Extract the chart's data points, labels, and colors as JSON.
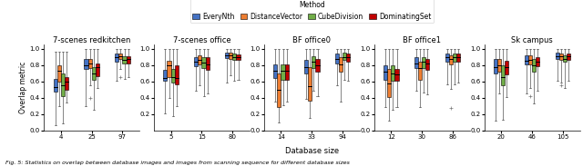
{
  "title": "Method",
  "methods": [
    "EveryNth",
    "DistanceVector",
    "CubeDivision",
    "DominatingSet"
  ],
  "method_colors": [
    "#4472C4",
    "#ED7D31",
    "#70AD47",
    "#C00000"
  ],
  "subplot_titles": [
    "7-scenes redkitchen",
    "7-scenes office",
    "BF office0",
    "BF office1",
    "Sk campus"
  ],
  "xlabel": "Database size",
  "ylabel": "Overlap metric",
  "caption": "Fig. 5: Statistics on overlap between database images and images from scanning sequence for different database sizes",
  "subplots": [
    {
      "xtick_labels": [
        "4",
        "25",
        "97"
      ],
      "ylim": [
        0.0,
        1.05
      ],
      "yticks": [
        0.0,
        0.2,
        0.4,
        0.6,
        0.8,
        1.0
      ],
      "show_yticks": true,
      "groups": [
        {
          "label": "4",
          "boxes": [
            {
              "q1": 0.48,
              "median": 0.535,
              "q3": 0.63,
              "whisker_low": 0.06,
              "whisker_high": 0.97,
              "fliers_low": [],
              "fliers_high": []
            },
            {
              "q1": 0.6,
              "median": 0.735,
              "q3": 0.8,
              "whisker_low": 0.3,
              "whisker_high": 0.965,
              "fliers_low": [],
              "fliers_high": []
            },
            {
              "q1": 0.42,
              "median": 0.555,
              "q3": 0.695,
              "whisker_low": 0.09,
              "whisker_high": 0.97,
              "fliers_low": [],
              "fliers_high": []
            },
            {
              "q1": 0.5,
              "median": 0.6,
              "q3": 0.65,
              "whisker_low": 0.34,
              "whisker_high": 0.97,
              "fliers_low": [],
              "fliers_high": []
            }
          ]
        },
        {
          "label": "25",
          "boxes": [
            {
              "q1": 0.75,
              "median": 0.8,
              "q3": 0.875,
              "whisker_low": 0.3,
              "whisker_high": 1.0,
              "fliers_low": [],
              "fliers_high": []
            },
            {
              "q1": 0.76,
              "median": 0.825,
              "q3": 0.88,
              "whisker_low": 0.555,
              "whisker_high": 1.0,
              "fliers_low": [
                0.4
              ],
              "fliers_high": []
            },
            {
              "q1": 0.615,
              "median": 0.695,
              "q3": 0.78,
              "whisker_low": 0.25,
              "whisker_high": 1.0,
              "fliers_low": [],
              "fliers_high": []
            },
            {
              "q1": 0.67,
              "median": 0.775,
              "q3": 0.825,
              "whisker_low": 0.52,
              "whisker_high": 1.0,
              "fliers_low": [],
              "fliers_high": []
            }
          ]
        },
        {
          "label": "97",
          "boxes": [
            {
              "q1": 0.845,
              "median": 0.895,
              "q3": 0.94,
              "whisker_low": 0.61,
              "whisker_high": 1.0,
              "fliers_low": [],
              "fliers_high": []
            },
            {
              "q1": 0.875,
              "median": 0.905,
              "q3": 0.945,
              "whisker_low": 0.75,
              "whisker_high": 1.0,
              "fliers_low": [
                0.65
              ],
              "fliers_high": []
            },
            {
              "q1": 0.825,
              "median": 0.865,
              "q3": 0.915,
              "whisker_low": 0.63,
              "whisker_high": 1.0,
              "fliers_low": [],
              "fliers_high": []
            },
            {
              "q1": 0.825,
              "median": 0.875,
              "q3": 0.915,
              "whisker_low": 0.65,
              "whisker_high": 1.0,
              "fliers_low": [],
              "fliers_high": []
            }
          ]
        }
      ]
    },
    {
      "xtick_labels": [
        "5",
        "15",
        "80"
      ],
      "ylim": [
        0.0,
        1.05
      ],
      "yticks": [
        0.2,
        0.4,
        0.6,
        0.8,
        1.0
      ],
      "show_yticks": true,
      "groups": [
        {
          "label": "5",
          "boxes": [
            {
              "q1": 0.605,
              "median": 0.645,
              "q3": 0.74,
              "whisker_low": 0.21,
              "whisker_high": 1.0,
              "fliers_low": [],
              "fliers_high": []
            },
            {
              "q1": 0.655,
              "median": 0.795,
              "q3": 0.855,
              "whisker_low": 0.4,
              "whisker_high": 1.0,
              "fliers_low": [],
              "fliers_high": []
            },
            {
              "q1": 0.59,
              "median": 0.655,
              "q3": 0.75,
              "whisker_low": 0.175,
              "whisker_high": 1.0,
              "fliers_low": [],
              "fliers_high": []
            },
            {
              "q1": 0.565,
              "median": 0.64,
              "q3": 0.795,
              "whisker_low": 0.295,
              "whisker_high": 1.0,
              "fliers_low": [],
              "fliers_high": []
            }
          ]
        },
        {
          "label": "15",
          "boxes": [
            {
              "q1": 0.785,
              "median": 0.845,
              "q3": 0.9,
              "whisker_low": 0.485,
              "whisker_high": 1.0,
              "fliers_low": [],
              "fliers_high": []
            },
            {
              "q1": 0.805,
              "median": 0.87,
              "q3": 0.92,
              "whisker_low": 0.555,
              "whisker_high": 1.0,
              "fliers_low": [],
              "fliers_high": []
            },
            {
              "q1": 0.765,
              "median": 0.83,
              "q3": 0.895,
              "whisker_low": 0.425,
              "whisker_high": 1.0,
              "fliers_low": [],
              "fliers_high": []
            },
            {
              "q1": 0.745,
              "median": 0.805,
              "q3": 0.895,
              "whisker_low": 0.455,
              "whisker_high": 1.0,
              "fliers_low": [],
              "fliers_high": []
            }
          ]
        },
        {
          "label": "80",
          "boxes": [
            {
              "q1": 0.885,
              "median": 0.92,
              "q3": 0.955,
              "whisker_low": 0.585,
              "whisker_high": 1.0,
              "fliers_low": [],
              "fliers_high": []
            },
            {
              "q1": 0.88,
              "median": 0.92,
              "q3": 0.955,
              "whisker_low": 0.68,
              "whisker_high": 1.0,
              "fliers_low": [],
              "fliers_high": []
            },
            {
              "q1": 0.865,
              "median": 0.9,
              "q3": 0.94,
              "whisker_low": 0.605,
              "whisker_high": 1.0,
              "fliers_low": [],
              "fliers_high": []
            },
            {
              "q1": 0.86,
              "median": 0.9,
              "q3": 0.935,
              "whisker_low": 0.625,
              "whisker_high": 1.0,
              "fliers_low": [],
              "fliers_high": []
            }
          ]
        }
      ]
    },
    {
      "xtick_labels": [
        "14",
        "33",
        "94"
      ],
      "ylim": [
        0.0,
        1.05
      ],
      "yticks": [
        0.0,
        0.2,
        0.4,
        0.6,
        0.8,
        1.0
      ],
      "show_yticks": true,
      "groups": [
        {
          "label": "14",
          "boxes": [
            {
              "q1": 0.645,
              "median": 0.73,
              "q3": 0.815,
              "whisker_low": 0.355,
              "whisker_high": 1.0,
              "fliers_low": [],
              "fliers_high": []
            },
            {
              "q1": 0.29,
              "median": 0.5,
              "q3": 0.7,
              "whisker_low": 0.1,
              "whisker_high": 1.0,
              "fliers_low": [],
              "fliers_high": []
            },
            {
              "q1": 0.625,
              "median": 0.73,
              "q3": 0.815,
              "whisker_low": 0.305,
              "whisker_high": 1.0,
              "fliers_low": [],
              "fliers_high": []
            },
            {
              "q1": 0.625,
              "median": 0.73,
              "q3": 0.815,
              "whisker_low": 0.355,
              "whisker_high": 1.0,
              "fliers_low": [],
              "fliers_high": []
            }
          ]
        },
        {
          "label": "33",
          "boxes": [
            {
              "q1": 0.7,
              "median": 0.775,
              "q3": 0.86,
              "whisker_low": 0.385,
              "whisker_high": 1.0,
              "fliers_low": [],
              "fliers_high": []
            },
            {
              "q1": 0.36,
              "median": 0.545,
              "q3": 0.775,
              "whisker_low": 0.155,
              "whisker_high": 1.0,
              "fliers_low": [],
              "fliers_high": []
            },
            {
              "q1": 0.765,
              "median": 0.84,
              "q3": 0.915,
              "whisker_low": 0.485,
              "whisker_high": 1.0,
              "fliers_low": [],
              "fliers_high": []
            },
            {
              "q1": 0.72,
              "median": 0.8,
              "q3": 0.88,
              "whisker_low": 0.425,
              "whisker_high": 1.0,
              "fliers_low": [],
              "fliers_high": []
            }
          ]
        },
        {
          "label": "94",
          "boxes": [
            {
              "q1": 0.82,
              "median": 0.875,
              "q3": 0.94,
              "whisker_low": 0.555,
              "whisker_high": 1.0,
              "fliers_low": [],
              "fliers_high": []
            },
            {
              "q1": 0.725,
              "median": 0.815,
              "q3": 0.895,
              "whisker_low": 0.355,
              "whisker_high": 1.0,
              "fliers_low": [],
              "fliers_high": []
            },
            {
              "q1": 0.86,
              "median": 0.9,
              "q3": 0.955,
              "whisker_low": 0.625,
              "whisker_high": 1.0,
              "fliers_low": [],
              "fliers_high": []
            },
            {
              "q1": 0.84,
              "median": 0.895,
              "q3": 0.94,
              "whisker_low": 0.605,
              "whisker_high": 1.0,
              "fliers_low": [],
              "fliers_high": []
            }
          ]
        }
      ]
    },
    {
      "xtick_labels": [
        "12",
        "30",
        "86"
      ],
      "ylim": [
        0.0,
        1.05
      ],
      "yticks": [
        0.0,
        0.2,
        0.4,
        0.6,
        0.8,
        1.0
      ],
      "show_yticks": true,
      "groups": [
        {
          "label": "12",
          "boxes": [
            {
              "q1": 0.625,
              "median": 0.72,
              "q3": 0.8,
              "whisker_low": 0.285,
              "whisker_high": 1.0,
              "fliers_low": [],
              "fliers_high": []
            },
            {
              "q1": 0.405,
              "median": 0.575,
              "q3": 0.755,
              "whisker_low": 0.12,
              "whisker_high": 1.0,
              "fliers_low": [],
              "fliers_high": []
            },
            {
              "q1": 0.605,
              "median": 0.7,
              "q3": 0.795,
              "whisker_low": 0.255,
              "whisker_high": 1.0,
              "fliers_low": [],
              "fliers_high": []
            },
            {
              "q1": 0.605,
              "median": 0.685,
              "q3": 0.755,
              "whisker_low": 0.285,
              "whisker_high": 1.0,
              "fliers_low": [],
              "fliers_high": []
            }
          ]
        },
        {
          "label": "30",
          "boxes": [
            {
              "q1": 0.765,
              "median": 0.82,
              "q3": 0.895,
              "whisker_low": 0.485,
              "whisker_high": 1.0,
              "fliers_low": [],
              "fliers_high": []
            },
            {
              "q1": 0.625,
              "median": 0.76,
              "q3": 0.84,
              "whisker_low": 0.285,
              "whisker_high": 1.0,
              "fliers_low": [],
              "fliers_high": []
            },
            {
              "q1": 0.765,
              "median": 0.84,
              "q3": 0.895,
              "whisker_low": 0.465,
              "whisker_high": 1.0,
              "fliers_low": [],
              "fliers_high": []
            },
            {
              "q1": 0.745,
              "median": 0.82,
              "q3": 0.875,
              "whisker_low": 0.445,
              "whisker_high": 1.0,
              "fliers_low": [],
              "fliers_high": []
            }
          ]
        },
        {
          "label": "86",
          "boxes": [
            {
              "q1": 0.845,
              "median": 0.895,
              "q3": 0.94,
              "whisker_low": 0.565,
              "whisker_high": 1.0,
              "fliers_low": [],
              "fliers_high": []
            },
            {
              "q1": 0.805,
              "median": 0.875,
              "q3": 0.92,
              "whisker_low": 0.505,
              "whisker_high": 1.0,
              "fliers_low": [
                0.28
              ],
              "fliers_high": []
            },
            {
              "q1": 0.845,
              "median": 0.895,
              "q3": 0.94,
              "whisker_low": 0.565,
              "whisker_high": 1.0,
              "fliers_low": [],
              "fliers_high": []
            },
            {
              "q1": 0.845,
              "median": 0.895,
              "q3": 0.94,
              "whisker_low": 0.585,
              "whisker_high": 1.0,
              "fliers_low": [],
              "fliers_high": []
            }
          ]
        }
      ]
    },
    {
      "xtick_labels": [
        "20",
        "46",
        "105"
      ],
      "ylim": [
        0.0,
        1.05
      ],
      "yticks": [
        0.0,
        0.2,
        0.4,
        0.6,
        0.8,
        1.0
      ],
      "show_yticks": true,
      "groups": [
        {
          "label": "20",
          "boxes": [
            {
              "q1": 0.7,
              "median": 0.775,
              "q3": 0.875,
              "whisker_low": 0.12,
              "whisker_high": 1.0,
              "fliers_low": [],
              "fliers_high": []
            },
            {
              "q1": 0.725,
              "median": 0.8,
              "q3": 0.875,
              "whisker_low": 0.455,
              "whisker_high": 1.0,
              "fliers_low": [],
              "fliers_high": []
            },
            {
              "q1": 0.555,
              "median": 0.655,
              "q3": 0.795,
              "whisker_low": 0.125,
              "whisker_high": 1.0,
              "fliers_low": [],
              "fliers_high": []
            },
            {
              "q1": 0.685,
              "median": 0.775,
              "q3": 0.855,
              "whisker_low": 0.405,
              "whisker_high": 1.0,
              "fliers_low": [],
              "fliers_high": []
            }
          ]
        },
        {
          "label": "46",
          "boxes": [
            {
              "q1": 0.805,
              "median": 0.855,
              "q3": 0.92,
              "whisker_low": 0.455,
              "whisker_high": 1.0,
              "fliers_low": [],
              "fliers_high": []
            },
            {
              "q1": 0.805,
              "median": 0.86,
              "q3": 0.92,
              "whisker_low": 0.525,
              "whisker_high": 1.0,
              "fliers_low": [
                0.42
              ],
              "fliers_high": []
            },
            {
              "q1": 0.725,
              "median": 0.8,
              "q3": 0.875,
              "whisker_low": 0.325,
              "whisker_high": 1.0,
              "fliers_low": [],
              "fliers_high": []
            },
            {
              "q1": 0.785,
              "median": 0.84,
              "q3": 0.895,
              "whisker_low": 0.485,
              "whisker_high": 1.0,
              "fliers_low": [],
              "fliers_high": []
            }
          ]
        },
        {
          "label": "105",
          "boxes": [
            {
              "q1": 0.875,
              "median": 0.915,
              "q3": 0.955,
              "whisker_low": 0.605,
              "whisker_high": 1.0,
              "fliers_low": [],
              "fliers_high": []
            },
            {
              "q1": 0.865,
              "median": 0.905,
              "q3": 0.94,
              "whisker_low": 0.585,
              "whisker_high": 1.0,
              "fliers_low": [
                0.55
              ],
              "fliers_high": []
            },
            {
              "q1": 0.845,
              "median": 0.88,
              "q3": 0.92,
              "whisker_low": 0.525,
              "whisker_high": 1.0,
              "fliers_low": [],
              "fliers_high": []
            },
            {
              "q1": 0.865,
              "median": 0.905,
              "q3": 0.94,
              "whisker_low": 0.605,
              "whisker_high": 1.0,
              "fliers_low": [],
              "fliers_high": []
            }
          ]
        }
      ]
    }
  ]
}
